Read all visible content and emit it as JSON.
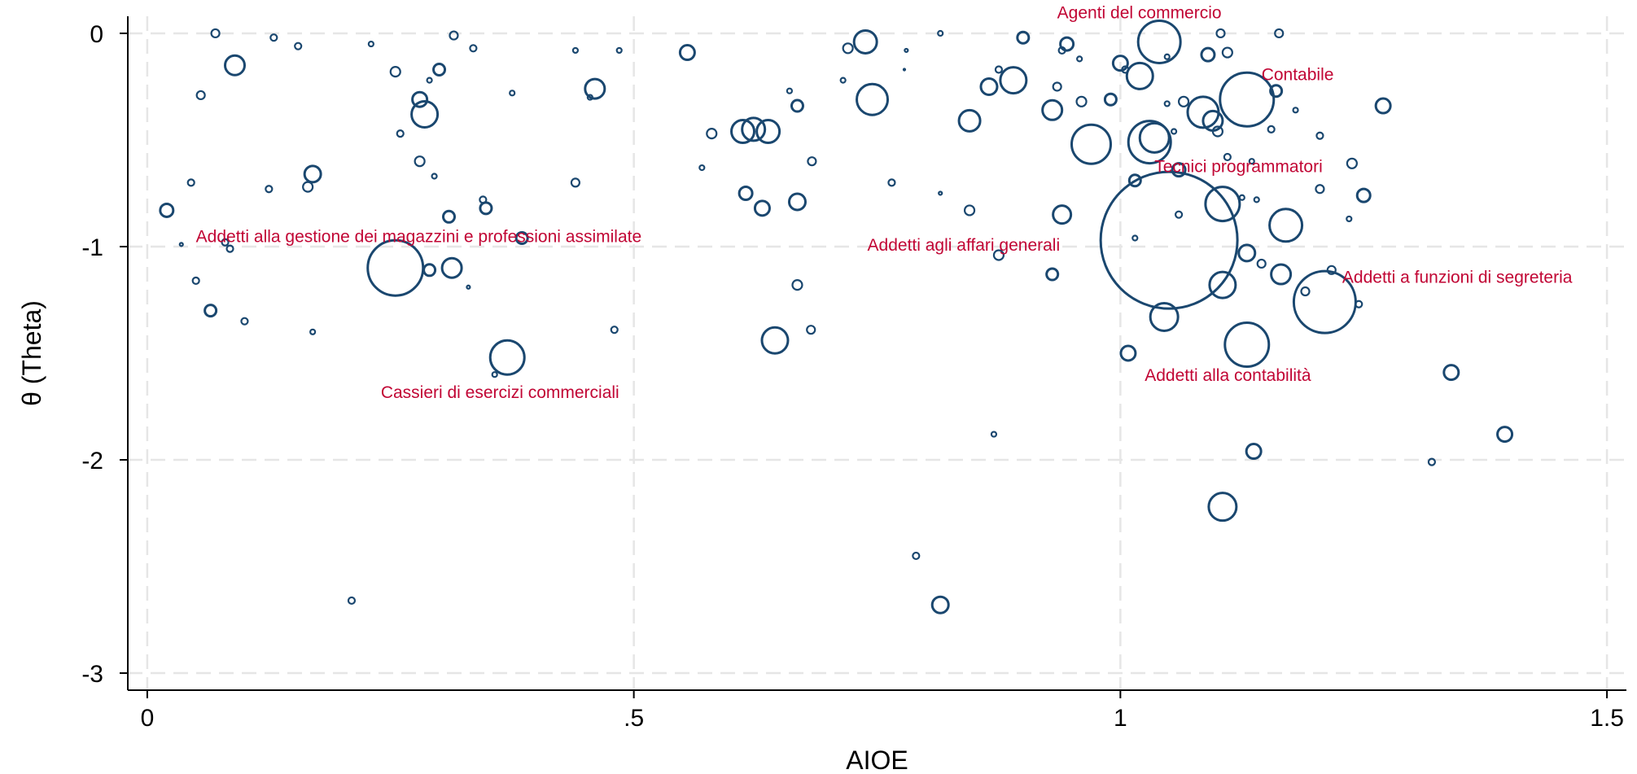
{
  "chart_data": {
    "type": "scatter",
    "xlabel": "AIOE",
    "ylabel": "θ (Theta)",
    "xlim": [
      -0.02,
      1.52
    ],
    "ylim": [
      -3.08,
      0.08
    ],
    "xticks": [
      0,
      0.5,
      1,
      1.5
    ],
    "xtick_labels": [
      "0",
      ".5",
      "1",
      "1.5"
    ],
    "yticks": [
      0,
      -1,
      -2,
      -3
    ],
    "ytick_labels": [
      "0",
      "-1",
      "-2",
      "-3"
    ],
    "grid": true,
    "marker_color": "#1a476f",
    "annotation_color": "#c10534",
    "points": [
      {
        "x": 0.07,
        "y": 0.0,
        "s": 5
      },
      {
        "x": 0.13,
        "y": -0.02,
        "s": 4
      },
      {
        "x": 0.155,
        "y": -0.06,
        "s": 4
      },
      {
        "x": 0.23,
        "y": -0.05,
        "s": 3
      },
      {
        "x": 0.315,
        "y": -0.01,
        "s": 5
      },
      {
        "x": 0.335,
        "y": -0.07,
        "s": 4
      },
      {
        "x": 0.44,
        "y": -0.08,
        "s": 3
      },
      {
        "x": 0.485,
        "y": -0.08,
        "s": 3
      },
      {
        "x": 0.09,
        "y": -0.15,
        "s": 12
      },
      {
        "x": 0.055,
        "y": -0.29,
        "s": 5
      },
      {
        "x": 0.255,
        "y": -0.18,
        "s": 6
      },
      {
        "x": 0.29,
        "y": -0.22,
        "s": 3
      },
      {
        "x": 0.3,
        "y": -0.17,
        "s": 7
      },
      {
        "x": 0.28,
        "y": -0.31,
        "s": 9
      },
      {
        "x": 0.285,
        "y": -0.38,
        "s": 16
      },
      {
        "x": 0.26,
        "y": -0.47,
        "s": 4
      },
      {
        "x": 0.375,
        "y": -0.28,
        "s": 3
      },
      {
        "x": 0.455,
        "y": -0.3,
        "s": 3
      },
      {
        "x": 0.46,
        "y": -0.26,
        "s": 12
      },
      {
        "x": 0.555,
        "y": -0.09,
        "s": 9
      },
      {
        "x": 0.045,
        "y": -0.7,
        "s": 4
      },
      {
        "x": 0.02,
        "y": -0.83,
        "s": 8
      },
      {
        "x": 0.125,
        "y": -0.73,
        "s": 4
      },
      {
        "x": 0.17,
        "y": -0.66,
        "s": 10
      },
      {
        "x": 0.165,
        "y": -0.72,
        "s": 6
      },
      {
        "x": 0.28,
        "y": -0.6,
        "s": 6
      },
      {
        "x": 0.295,
        "y": -0.67,
        "s": 3
      },
      {
        "x": 0.31,
        "y": -0.86,
        "s": 7
      },
      {
        "x": 0.345,
        "y": -0.78,
        "s": 4
      },
      {
        "x": 0.348,
        "y": -0.82,
        "s": 7
      },
      {
        "x": 0.44,
        "y": -0.7,
        "s": 5
      },
      {
        "x": 0.035,
        "y": -0.99,
        "s": 2
      },
      {
        "x": 0.08,
        "y": -0.98,
        "s": 4
      },
      {
        "x": 0.085,
        "y": -1.01,
        "s": 4
      },
      {
        "x": 0.05,
        "y": -1.16,
        "s": 4
      },
      {
        "x": 0.065,
        "y": -1.3,
        "s": 7
      },
      {
        "x": 0.1,
        "y": -1.35,
        "s": 4
      },
      {
        "x": 0.17,
        "y": -1.4,
        "s": 3
      },
      {
        "x": 0.21,
        "y": -2.66,
        "s": 4
      },
      {
        "x": 0.255,
        "y": -1.1,
        "s": 34
      },
      {
        "x": 0.29,
        "y": -1.11,
        "s": 7
      },
      {
        "x": 0.313,
        "y": -1.1,
        "s": 12
      },
      {
        "x": 0.33,
        "y": -1.19,
        "s": 2
      },
      {
        "x": 0.385,
        "y": -0.96,
        "s": 7
      },
      {
        "x": 0.37,
        "y": -1.52,
        "s": 21
      },
      {
        "x": 0.357,
        "y": -1.6,
        "s": 3
      },
      {
        "x": 0.48,
        "y": -1.39,
        "s": 4
      },
      {
        "x": 0.58,
        "y": -0.47,
        "s": 6
      },
      {
        "x": 0.612,
        "y": -0.46,
        "s": 14
      },
      {
        "x": 0.623,
        "y": -0.45,
        "s": 14
      },
      {
        "x": 0.638,
        "y": -0.46,
        "s": 14
      },
      {
        "x": 0.66,
        "y": -0.27,
        "s": 3
      },
      {
        "x": 0.668,
        "y": -0.34,
        "s": 7
      },
      {
        "x": 0.683,
        "y": -0.6,
        "s": 5
      },
      {
        "x": 0.57,
        "y": -0.63,
        "s": 3
      },
      {
        "x": 0.615,
        "y": -0.75,
        "s": 8
      },
      {
        "x": 0.632,
        "y": -0.82,
        "s": 9
      },
      {
        "x": 0.668,
        "y": -0.79,
        "s": 10
      },
      {
        "x": 0.668,
        "y": -1.18,
        "s": 6
      },
      {
        "x": 0.645,
        "y": -1.44,
        "s": 16
      },
      {
        "x": 0.682,
        "y": -1.39,
        "s": 5
      },
      {
        "x": 0.72,
        "y": -0.07,
        "s": 6
      },
      {
        "x": 0.738,
        "y": -0.04,
        "s": 14
      },
      {
        "x": 0.745,
        "y": -0.31,
        "s": 19
      },
      {
        "x": 0.715,
        "y": -0.22,
        "s": 3
      },
      {
        "x": 0.78,
        "y": -0.08,
        "s": 2
      },
      {
        "x": 0.778,
        "y": -0.17,
        "s": 1
      },
      {
        "x": 0.765,
        "y": -0.7,
        "s": 4
      },
      {
        "x": 0.815,
        "y": -0.75,
        "s": 2
      },
      {
        "x": 0.79,
        "y": -2.45,
        "s": 4
      },
      {
        "x": 0.815,
        "y": -2.68,
        "s": 10
      },
      {
        "x": 0.87,
        "y": -1.88,
        "s": 3
      },
      {
        "x": 0.815,
        "y": 0.0,
        "s": 3
      },
      {
        "x": 0.9,
        "y": -0.02,
        "s": 7
      },
      {
        "x": 0.89,
        "y": -0.22,
        "s": 16
      },
      {
        "x": 0.865,
        "y": -0.25,
        "s": 10
      },
      {
        "x": 0.875,
        "y": -0.17,
        "s": 4
      },
      {
        "x": 0.845,
        "y": -0.41,
        "s": 13
      },
      {
        "x": 0.845,
        "y": -0.83,
        "s": 6
      },
      {
        "x": 0.875,
        "y": -1.04,
        "s": 6
      },
      {
        "x": 0.93,
        "y": -1.13,
        "s": 7
      },
      {
        "x": 0.94,
        "y": -0.85,
        "s": 11
      },
      {
        "x": 0.94,
        "y": -0.08,
        "s": 4
      },
      {
        "x": 0.945,
        "y": -0.05,
        "s": 8
      },
      {
        "x": 0.958,
        "y": -0.12,
        "s": 3
      },
      {
        "x": 0.935,
        "y": -0.25,
        "s": 5
      },
      {
        "x": 0.93,
        "y": -0.36,
        "s": 12
      },
      {
        "x": 0.96,
        "y": -0.32,
        "s": 6
      },
      {
        "x": 0.97,
        "y": -0.52,
        "s": 24
      },
      {
        "x": 0.99,
        "y": -0.31,
        "s": 7
      },
      {
        "x": 1.0,
        "y": -0.14,
        "s": 9
      },
      {
        "x": 1.005,
        "y": -0.17,
        "s": 4
      },
      {
        "x": 1.02,
        "y": -0.2,
        "s": 16
      },
      {
        "x": 1.04,
        "y": -0.04,
        "s": 26
      },
      {
        "x": 1.048,
        "y": -0.11,
        "s": 3
      },
      {
        "x": 1.035,
        "y": -0.49,
        "s": 18
      },
      {
        "x": 1.03,
        "y": -0.51,
        "s": 26
      },
      {
        "x": 1.048,
        "y": -0.33,
        "s": 3
      },
      {
        "x": 1.055,
        "y": -0.46,
        "s": 3
      },
      {
        "x": 1.06,
        "y": -0.64,
        "s": 8
      },
      {
        "x": 1.065,
        "y": -0.32,
        "s": 6
      },
      {
        "x": 1.085,
        "y": -0.37,
        "s": 19
      },
      {
        "x": 1.095,
        "y": -0.41,
        "s": 12
      },
      {
        "x": 1.1,
        "y": -0.46,
        "s": 6
      },
      {
        "x": 1.09,
        "y": -0.1,
        "s": 8
      },
      {
        "x": 1.11,
        "y": -0.09,
        "s": 6
      },
      {
        "x": 1.103,
        "y": 0.0,
        "s": 5
      },
      {
        "x": 1.13,
        "y": -0.31,
        "s": 33
      },
      {
        "x": 1.16,
        "y": -0.27,
        "s": 7
      },
      {
        "x": 1.163,
        "y": 0.0,
        "s": 5
      },
      {
        "x": 1.155,
        "y": -0.45,
        "s": 4
      },
      {
        "x": 1.18,
        "y": -0.36,
        "s": 3
      },
      {
        "x": 1.205,
        "y": -0.48,
        "s": 4
      },
      {
        "x": 1.27,
        "y": -0.34,
        "s": 9
      },
      {
        "x": 1.11,
        "y": -0.58,
        "s": 4
      },
      {
        "x": 1.135,
        "y": -0.6,
        "s": 3
      },
      {
        "x": 1.015,
        "y": -0.69,
        "s": 7
      },
      {
        "x": 1.06,
        "y": -0.85,
        "s": 4
      },
      {
        "x": 1.105,
        "y": -0.8,
        "s": 21
      },
      {
        "x": 1.125,
        "y": -0.77,
        "s": 3
      },
      {
        "x": 1.14,
        "y": -0.78,
        "s": 3
      },
      {
        "x": 1.17,
        "y": -0.9,
        "s": 20
      },
      {
        "x": 1.205,
        "y": -0.73,
        "s": 5
      },
      {
        "x": 1.25,
        "y": -0.76,
        "s": 8
      },
      {
        "x": 1.238,
        "y": -0.61,
        "s": 6
      },
      {
        "x": 1.235,
        "y": -0.87,
        "s": 3
      },
      {
        "x": 1.05,
        "y": -0.97,
        "s": 84
      },
      {
        "x": 1.015,
        "y": -0.96,
        "s": 3
      },
      {
        "x": 1.13,
        "y": -1.03,
        "s": 10
      },
      {
        "x": 1.145,
        "y": -1.08,
        "s": 5
      },
      {
        "x": 1.165,
        "y": -1.13,
        "s": 12
      },
      {
        "x": 1.105,
        "y": -1.18,
        "s": 16
      },
      {
        "x": 1.21,
        "y": -1.26,
        "s": 38
      },
      {
        "x": 1.19,
        "y": -1.21,
        "s": 5
      },
      {
        "x": 1.217,
        "y": -1.11,
        "s": 5
      },
      {
        "x": 1.245,
        "y": -1.27,
        "s": 4
      },
      {
        "x": 1.045,
        "y": -1.33,
        "s": 17
      },
      {
        "x": 1.13,
        "y": -1.46,
        "s": 27
      },
      {
        "x": 1.008,
        "y": -1.5,
        "s": 9
      },
      {
        "x": 1.34,
        "y": -1.59,
        "s": 9
      },
      {
        "x": 1.395,
        "y": -1.88,
        "s": 9
      },
      {
        "x": 1.32,
        "y": -2.01,
        "s": 4
      },
      {
        "x": 1.137,
        "y": -1.96,
        "s": 9
      },
      {
        "x": 1.105,
        "y": -2.22,
        "s": 17
      }
    ],
    "annotations": [
      {
        "text": "Agenti del commercio",
        "x": 0.935,
        "y": 0.07
      },
      {
        "text": "Contabile",
        "x": 1.145,
        "y": -0.22
      },
      {
        "text": "Tecnici programmatori",
        "x": 1.035,
        "y": -0.65
      },
      {
        "text": "Addetti alla gestione dei magazzini e professioni assimilate",
        "x": 0.05,
        "y": -0.98
      },
      {
        "text": "Addetti agli affari generali",
        "x": 0.74,
        "y": -1.02
      },
      {
        "text": "Addetti a funzioni di segreteria",
        "x": 1.228,
        "y": -1.17
      },
      {
        "text": "Addetti alla contabilità",
        "x": 1.025,
        "y": -1.63
      },
      {
        "text": "Cassieri di esercizi commerciali",
        "x": 0.24,
        "y": -1.71
      }
    ]
  }
}
